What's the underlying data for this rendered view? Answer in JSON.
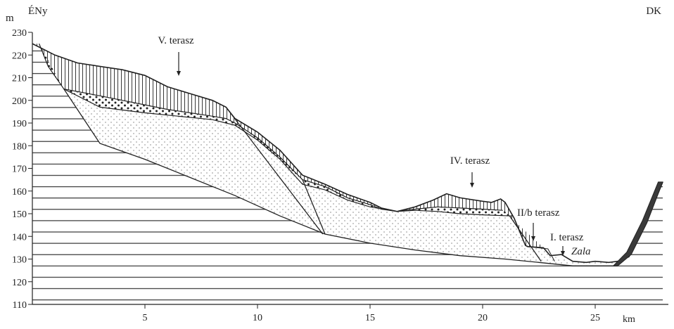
{
  "colors": {
    "ink": "#222222",
    "paper": "#ffffff"
  },
  "labels": {
    "y_unit": "m",
    "x_unit": "km",
    "left_direction": "ÉNy",
    "right_direction": "DK",
    "river": "Zala"
  },
  "axes": {
    "y_ticks": [
      "230",
      "220",
      "210",
      "200",
      "190",
      "180",
      "170",
      "160",
      "150",
      "140",
      "130",
      "120",
      "110"
    ],
    "y_values": [
      230,
      220,
      210,
      200,
      190,
      180,
      170,
      160,
      150,
      140,
      130,
      120,
      110
    ],
    "x_ticks": [
      "5",
      "10",
      "15",
      "20",
      "25"
    ],
    "x_values": [
      5,
      10,
      15,
      20,
      25
    ],
    "x_range_km": [
      0,
      28
    ],
    "y_range_m": [
      110,
      232
    ]
  },
  "terraces": [
    {
      "label": "V. terasz",
      "km": 6.5,
      "elev": 213
    },
    {
      "label": "IV. terasz",
      "km": 19.3,
      "elev": 158
    },
    {
      "label": "II/b terasz",
      "km": 22.0,
      "elev": 138
    },
    {
      "label": "I. terasz",
      "km": 23.3,
      "elev": 134
    }
  ]
}
